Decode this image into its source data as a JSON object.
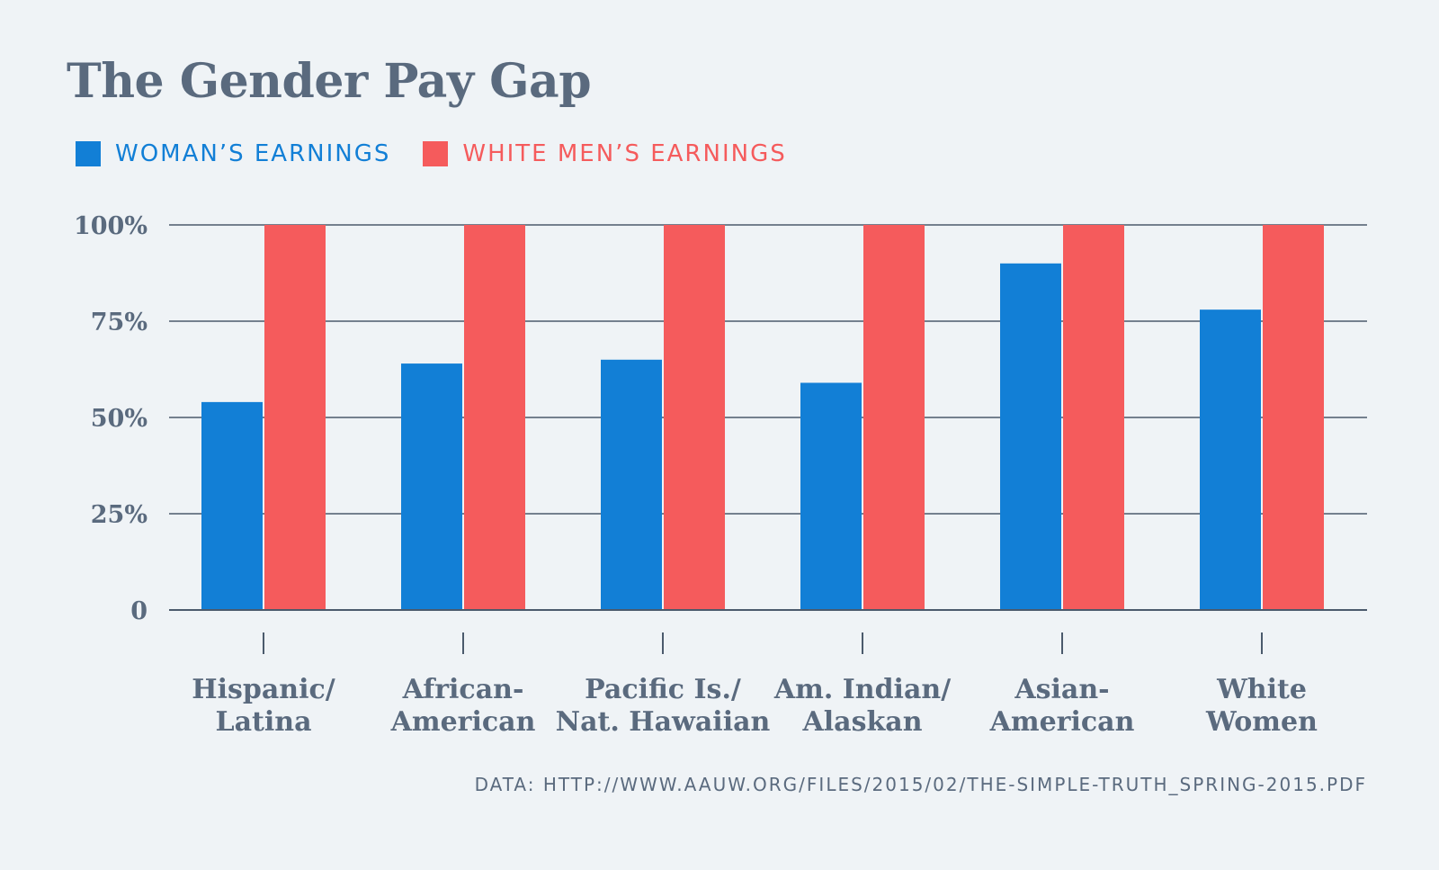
{
  "chart_data": {
    "type": "bar",
    "title": "The Gender Pay Gap",
    "categories": [
      [
        "Hispanic/",
        "Latina"
      ],
      [
        "African-",
        "American"
      ],
      [
        "Pacific Is./",
        "Nat. Hawaiian"
      ],
      [
        "Am. Indian/",
        "Alaskan"
      ],
      [
        "Asian-",
        "American"
      ],
      [
        "White",
        "Women"
      ]
    ],
    "series": [
      {
        "name": "WOMAN’S EARNINGS",
        "color": "#127fd6",
        "values": [
          54,
          64,
          65,
          59,
          90,
          78
        ]
      },
      {
        "name": "WHITE MEN’S EARNINGS",
        "color": "#f55b5c",
        "values": [
          100,
          100,
          100,
          100,
          100,
          100
        ]
      }
    ],
    "yticks": [
      {
        "value": 0,
        "label": "0"
      },
      {
        "value": 25,
        "label": "25%"
      },
      {
        "value": 50,
        "label": "50%"
      },
      {
        "value": 75,
        "label": "75%"
      },
      {
        "value": 100,
        "label": "100%"
      }
    ],
    "ylim": [
      0,
      100
    ],
    "grid": true,
    "legend": "top-left",
    "source": "DATA: HTTP://WWW.AAUW.ORG/FILES/2015/02/THE-SIMPLE-TRUTH_SPRING-2015.PDF"
  },
  "colors": {
    "background": "#eff3f6",
    "text": "#5a6a7e",
    "grid": "#4b5a6c"
  }
}
